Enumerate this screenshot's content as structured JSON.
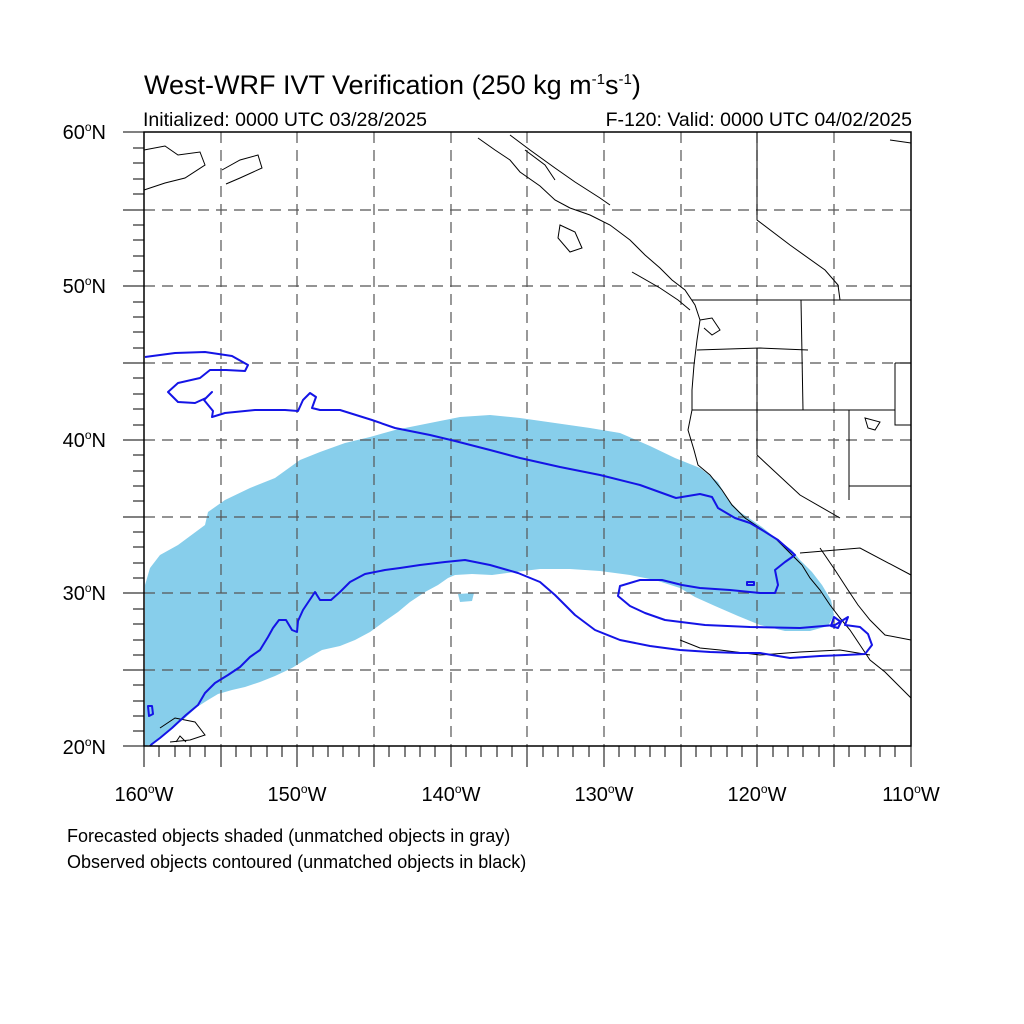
{
  "title": {
    "main": "West-WRF IVT Verification (250 kg m",
    "exp1": "-1",
    "mid": "s",
    "exp2": "-1",
    "end": ")"
  },
  "subtitle_left": "Initialized: 0000 UTC 03/28/2025",
  "subtitle_right": "F-120: Valid: 0000 UTC 04/02/2025",
  "latitude_labels": [
    {
      "num": "60",
      "dir": "N"
    },
    {
      "num": "50",
      "dir": "N"
    },
    {
      "num": "40",
      "dir": "N"
    },
    {
      "num": "30",
      "dir": "N"
    },
    {
      "num": "20",
      "dir": "N"
    }
  ],
  "longitude_labels": [
    {
      "num": "160",
      "dir": "W"
    },
    {
      "num": "150",
      "dir": "W"
    },
    {
      "num": "140",
      "dir": "W"
    },
    {
      "num": "130",
      "dir": "W"
    },
    {
      "num": "120",
      "dir": "W"
    },
    {
      "num": "110",
      "dir": "W"
    }
  ],
  "degree_symbol": "o",
  "footnotes": [
    "Forecasted objects shaded (unmatched objects in gray)",
    "Observed objects contoured (unmatched objects in black)"
  ],
  "colors": {
    "forecast_shading": "#87ceeb",
    "observed_contour": "#1414e6",
    "coastline": "#000000",
    "grid": "#555555"
  },
  "map_extent": {
    "lon_min": -160,
    "lon_max": -110,
    "lat_min": 20,
    "lat_max": 60
  }
}
